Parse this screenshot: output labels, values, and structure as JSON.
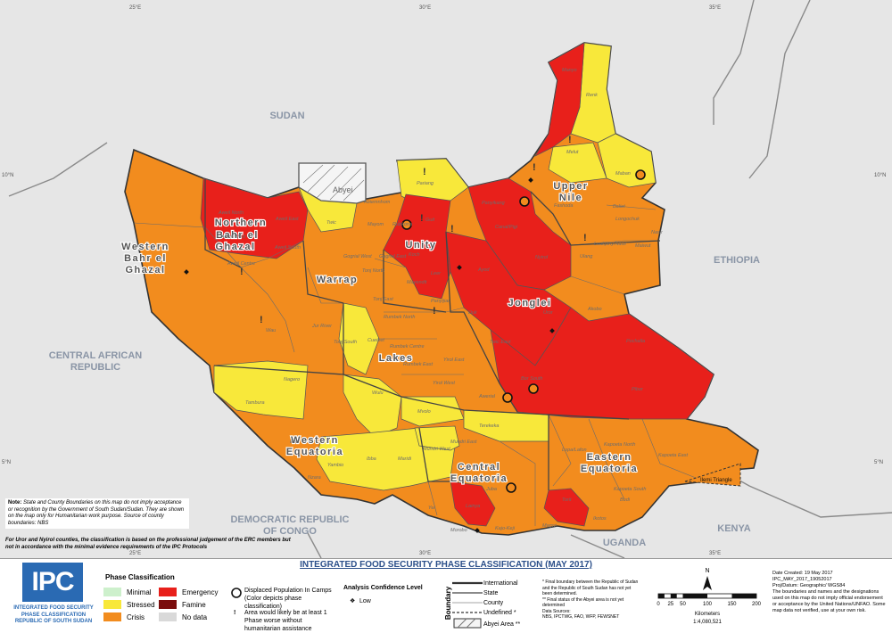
{
  "colors": {
    "minimal": "#cdf0cc",
    "stressed": "#f8e83a",
    "crisis": "#f28c1e",
    "emergency": "#e8201b",
    "famine": "#7a0c0c",
    "nodata": "#d9d9d9",
    "neighbor": "#e8e8e8",
    "water": "#ffffff"
  },
  "map": {
    "graticule": {
      "top": [
        "25°E",
        "30°E",
        "35°E"
      ],
      "bottom": [
        "25°E",
        "30°E",
        "35°E"
      ],
      "left": [
        "10°N",
        "5°N"
      ],
      "right": [
        "10°N",
        "5°N"
      ]
    },
    "countries": [
      "SUDAN",
      "ETHIOPIA",
      "CENTRAL AFRICAN REPUBLIC",
      "DEMOCRATIC REPUBLIC OF CONGO",
      "UGANDA",
      "KENYA"
    ],
    "states": [
      "Northern Bahr el Ghazal",
      "Western Bahr el Ghazal",
      "Unity",
      "Upper Nile",
      "Warrap",
      "Jonglei",
      "Lakes",
      "Western Equatoria",
      "Central Equatoria",
      "Eastern Equatoria"
    ],
    "abyei": "Abyei",
    "ilemi": "Ilemi Triangle",
    "counties": [
      "Manyo",
      "Renk",
      "Melut",
      "Maban",
      "Fashoda",
      "Panyikang",
      "Canal/Pigi",
      "Nyirol",
      "Pariang",
      "Rubkona",
      "Guit",
      "Abiemnhom",
      "Aweil North",
      "Aweil East",
      "Aweil West",
      "Aweil South",
      "Aweil Centre",
      "Twic",
      "Mayom",
      "Koch",
      "Leer",
      "Mayendit",
      "Panyijiar",
      "Ayod",
      "Duk",
      "Uror",
      "Akobo",
      "Pochalla",
      "Twic East",
      "Bor South",
      "Pibor",
      "Tonj North",
      "Tonj East",
      "Tonj South",
      "Gogrial East",
      "Gogrial West",
      "Wau",
      "Jur River",
      "Nagero",
      "Tambura",
      "Wulu",
      "Rumbek North",
      "Rumbek Centre",
      "Rumbek East",
      "Cueibet",
      "Yirol East",
      "Yirol West",
      "Awerial",
      "Mvolo",
      "Terekeka",
      "Mundri West",
      "Mundri East",
      "Maridi",
      "Ibba",
      "Yambio",
      "Nzara",
      "Ezo",
      "Juba",
      "Lainya",
      "Yei",
      "Morobo",
      "Kajo-Keji",
      "Magwi",
      "Torit",
      "Lopa/Lafon",
      "Kapoeta North",
      "Kapoeta South",
      "Kapoeta East",
      "Budi",
      "Ikotos",
      "Longochuk",
      "Maiwut",
      "Ulang",
      "Nasir",
      "Luakpiny/Nasir",
      "Baliet"
    ]
  },
  "title": "INTEGRATED FOOD SECURITY PHASE CLASSIFICATION (MAY 2017)",
  "logo": {
    "text": "IPC",
    "sub1": "INTEGRATED FOOD SECURITY",
    "sub2": "PHASE CLASSIFICATION",
    "sub3": "REPUBLIC OF SOUTH SUDAN"
  },
  "legend": {
    "phase_title": "Phase Classification",
    "phases": [
      {
        "label": "Minimal",
        "color": "#cdf0cc"
      },
      {
        "label": "Stressed",
        "color": "#f8e83a"
      },
      {
        "label": "Crisis",
        "color": "#f28c1e"
      },
      {
        "label": "Emergency",
        "color": "#e8201b"
      },
      {
        "label": "Famine",
        "color": "#7a0c0c"
      },
      {
        "label": "No data",
        "color": "#d9d9d9"
      }
    ],
    "displaced": "Displaced Population In Camps (Color depicts phase classification)",
    "worse": "Area would likely be at least 1 Phase worse without humanitarian assistance",
    "confidence_title": "Analysis Confidence Level",
    "confidence_low": "Low",
    "boundary_title": "Boundary",
    "boundaries": [
      "International",
      "State",
      "County",
      "Undefined *",
      "Abyei Area **"
    ],
    "footnote1": "* Final boundary between the Republic of Sudan and the Republic of South Sudan has not yet been determined.",
    "footnote2": "** Final status of the Abyei area is not yet determined",
    "sources_title": "Data Sources:",
    "sources": "NBS, IPCTWG, FAO, WFP, FEWSNET",
    "scale_ticks": [
      "0",
      "25",
      "50",
      "100",
      "150",
      "200"
    ],
    "scale_unit": "Kilometers",
    "scale_ratio": "1:4,080,521",
    "north": "N"
  },
  "right_info": {
    "date": "Date Created: 19 May 2017",
    "id": "IPC_MAY_2017_19052017",
    "proj": "Proj/Datum: Geographic/ WGS84",
    "disclaimer": "The boundaries and names and the designations used on this map do not imply official endorsement or acceptance by the United Nations/UNFAO. Some map data not verified, use at your own risk."
  },
  "notes": {
    "note1_title": "Note:",
    "note1": "State and County Boundaries on this map do not imply acceptance or recognition by the Government of South Sudan/Sudan. They are shown on the map only for Humanitarian work purpose. Source of county boundaries: NBS",
    "note2": "For Uror and Nyirol counties, the classification is based on the professional judgement of the ERC members but not in accordance with the minimal evidence requirements of the IPC Protocols"
  }
}
